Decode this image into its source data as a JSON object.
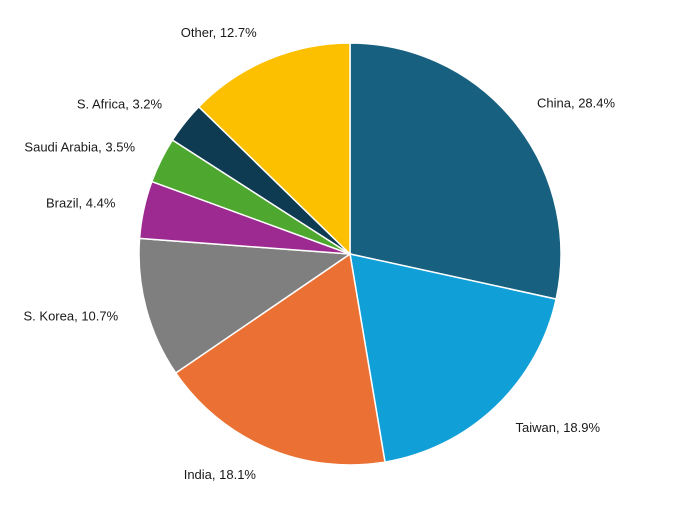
{
  "chart_data": {
    "type": "pie",
    "slices": [
      {
        "name": "China",
        "value": 28.4,
        "label": "China, 28.4%",
        "color": "#17607f"
      },
      {
        "name": "Taiwan",
        "value": 18.9,
        "label": "Taiwan, 18.9%",
        "color": "#119fd8"
      },
      {
        "name": "India",
        "value": 18.1,
        "label": "India, 18.1%",
        "color": "#ea7033"
      },
      {
        "name": "S. Korea",
        "value": 10.7,
        "label": "S. Korea, 10.7%",
        "color": "#7f7f7f"
      },
      {
        "name": "Brazil",
        "value": 4.4,
        "label": "Brazil, 4.4%",
        "color": "#9c2a91"
      },
      {
        "name": "Saudi Arabia",
        "value": 3.5,
        "label": "Saudi Arabia, 3.5%",
        "color": "#4ea72e"
      },
      {
        "name": "S. Africa",
        "value": 3.2,
        "label": "S. Africa, 3.2%",
        "color": "#0e3a52"
      },
      {
        "name": "Other",
        "value": 12.7,
        "label": "Other, 12.7%",
        "color": "#fdc000"
      }
    ],
    "start_angle": "12 o'clock",
    "direction": "clockwise",
    "legend": "none"
  }
}
